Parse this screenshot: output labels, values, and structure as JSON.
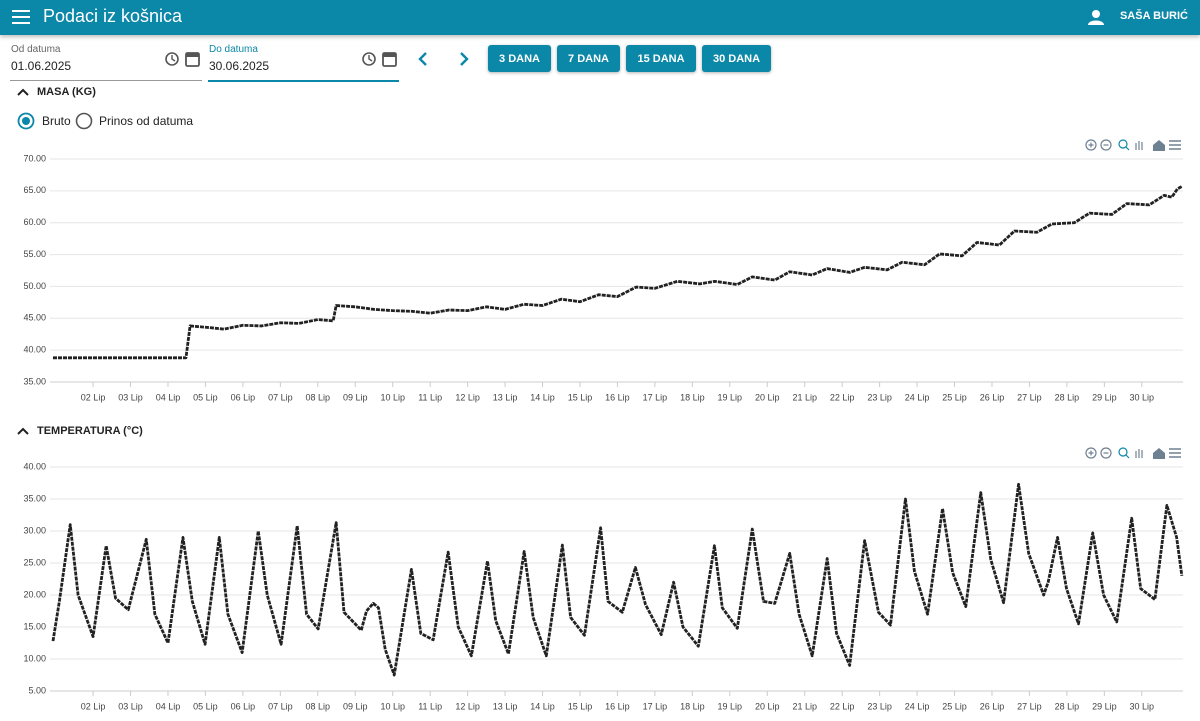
{
  "app_bar": {
    "title": "Podaci iz košnica",
    "user": "SAŠA BURIĆ"
  },
  "filters": {
    "from_label": "Od datuma",
    "from_value": "01.06.2025",
    "to_label": "Do datuma",
    "to_value": "30.06.2025",
    "range_buttons": [
      "3 DANA",
      "7 DANA",
      "15 DANA",
      "30 DANA"
    ]
  },
  "sections": [
    {
      "title": "MASA (KG)"
    },
    {
      "title": "TEMPERATURA (°C)"
    }
  ],
  "mass_options": [
    "Bruto",
    "Prinos od datuma"
  ],
  "chart_data": [
    {
      "type": "line",
      "color": "#222222",
      "grid": true,
      "x": [
        0.93,
        4.48,
        4.59,
        5.0,
        5.5,
        6.0,
        6.5,
        7.0,
        7.5,
        8.0,
        8.41,
        8.49,
        9.0,
        9.5,
        10.0,
        10.5,
        11.0,
        11.5,
        12.0,
        12.5,
        13.0,
        13.5,
        14.0,
        14.5,
        15.0,
        15.5,
        16.0,
        16.5,
        17.0,
        17.6,
        18.2,
        18.6,
        19.2,
        19.6,
        20.2,
        20.6,
        21.2,
        21.6,
        22.2,
        22.6,
        23.2,
        23.6,
        24.2,
        24.6,
        25.2,
        25.6,
        26.2,
        26.6,
        27.2,
        27.6,
        28.2,
        28.6,
        29.2,
        29.6,
        30.2,
        30.6,
        30.8,
        30.95,
        31.07
      ],
      "values": [
        38.8,
        38.8,
        43.8,
        43.6,
        43.3,
        43.9,
        43.8,
        44.3,
        44.2,
        44.8,
        44.6,
        47.0,
        46.8,
        46.4,
        46.2,
        46.1,
        45.8,
        46.3,
        46.2,
        46.8,
        46.4,
        47.2,
        47.0,
        48.0,
        47.6,
        48.7,
        48.4,
        49.9,
        49.7,
        50.8,
        50.4,
        50.8,
        50.3,
        51.5,
        51.0,
        52.3,
        51.8,
        52.8,
        52.2,
        53.0,
        52.6,
        53.8,
        53.4,
        55.1,
        54.8,
        56.9,
        56.5,
        58.7,
        58.5,
        59.8,
        60.0,
        61.5,
        61.3,
        63.0,
        62.8,
        64.3,
        64.0,
        65.3,
        65.7
      ],
      "xlim": [
        0.85,
        31.1
      ],
      "xticks": [
        {
          "value": 2,
          "label": "02 Lip"
        },
        {
          "value": 3,
          "label": "03 Lip"
        },
        {
          "value": 4,
          "label": "04 Lip"
        },
        {
          "value": 5,
          "label": "05 Lip"
        },
        {
          "value": 6,
          "label": "06 Lip"
        },
        {
          "value": 7,
          "label": "07 Lip"
        },
        {
          "value": 8,
          "label": "08 Lip"
        },
        {
          "value": 9,
          "label": "09 Lip"
        },
        {
          "value": 10,
          "label": "10 Lip"
        },
        {
          "value": 11,
          "label": "11 Lip"
        },
        {
          "value": 12,
          "label": "12 Lip"
        },
        {
          "value": 13,
          "label": "13 Lip"
        },
        {
          "value": 14,
          "label": "14 Lip"
        },
        {
          "value": 15,
          "label": "15 Lip"
        },
        {
          "value": 16,
          "label": "16 Lip"
        },
        {
          "value": 17,
          "label": "17 Lip"
        },
        {
          "value": 18,
          "label": "18 Lip"
        },
        {
          "value": 19,
          "label": "19 Lip"
        },
        {
          "value": 20,
          "label": "20 Lip"
        },
        {
          "value": 21,
          "label": "21 Lip"
        },
        {
          "value": 22,
          "label": "22 Lip"
        },
        {
          "value": 23,
          "label": "23 Lip"
        },
        {
          "value": 24,
          "label": "24 Lip"
        },
        {
          "value": 25,
          "label": "25 Lip"
        },
        {
          "value": 26,
          "label": "26 Lip"
        },
        {
          "value": 27,
          "label": "27 Lip"
        },
        {
          "value": 28,
          "label": "28 Lip"
        },
        {
          "value": 29,
          "label": "29 Lip"
        },
        {
          "value": 30,
          "label": "30 Lip"
        }
      ],
      "ylim": [
        35,
        70
      ],
      "yticks": [
        {
          "value": 35,
          "label": "35.00"
        },
        {
          "value": 40,
          "label": "40.00"
        },
        {
          "value": 45,
          "label": "45.00"
        },
        {
          "value": 50,
          "label": "50.00"
        },
        {
          "value": 55,
          "label": "55.00"
        },
        {
          "value": 60,
          "label": "60.00"
        },
        {
          "value": 65,
          "label": "65.00"
        },
        {
          "value": 70,
          "label": "70.00"
        }
      ]
    },
    {
      "type": "line",
      "color": "#222222",
      "grid": true,
      "x": [
        0.93,
        1.1,
        1.39,
        1.6,
        2.0,
        2.35,
        2.6,
        2.94,
        3.42,
        3.65,
        4.0,
        4.4,
        4.65,
        4.99,
        5.37,
        5.6,
        5.98,
        6.41,
        6.65,
        7.02,
        7.45,
        7.7,
        8.01,
        8.49,
        8.7,
        9.16,
        9.3,
        9.48,
        9.62,
        9.8,
        10.04,
        10.5,
        10.75,
        11.08,
        11.48,
        11.75,
        12.1,
        12.53,
        12.75,
        13.09,
        13.51,
        13.75,
        14.1,
        14.53,
        14.75,
        15.12,
        15.55,
        15.75,
        16.13,
        16.48,
        16.75,
        17.17,
        17.5,
        17.75,
        18.16,
        18.59,
        18.8,
        19.2,
        19.6,
        19.9,
        20.2,
        20.6,
        20.85,
        21.2,
        21.6,
        21.85,
        22.2,
        22.6,
        22.97,
        23.29,
        23.69,
        23.93,
        24.28,
        24.68,
        24.95,
        25.3,
        25.7,
        25.97,
        26.31,
        26.71,
        26.98,
        27.38,
        27.5,
        27.75,
        27.99,
        28.31,
        28.69,
        28.98,
        29.33,
        29.73,
        29.97,
        30.35,
        30.67,
        30.93,
        31.07
      ],
      "values": [
        12.8,
        19,
        31,
        20,
        13.5,
        27.7,
        19.5,
        17.7,
        28.7,
        17,
        12.5,
        29,
        19,
        12.3,
        29,
        17,
        11,
        30,
        20,
        12.3,
        30.8,
        17,
        14.7,
        31.3,
        17.3,
        14.5,
        17.5,
        18.7,
        18,
        11.5,
        7.5,
        24,
        14,
        13,
        26.7,
        15,
        10.5,
        25.3,
        16,
        10.8,
        26.8,
        16.5,
        10.5,
        27.8,
        16.5,
        13.7,
        30.5,
        19,
        17.3,
        24.3,
        18.5,
        13.8,
        22,
        15,
        12,
        27.7,
        18,
        14.8,
        30.3,
        19,
        18.7,
        26.5,
        17,
        10.5,
        25.7,
        14,
        9,
        28.5,
        17.3,
        15.3,
        35,
        23.7,
        17,
        33.5,
        23.5,
        18.2,
        36,
        25.5,
        18.8,
        37.3,
        26.5,
        20,
        22,
        29,
        21,
        15.5,
        29.7,
        20,
        15.8,
        32,
        21,
        19.3,
        34,
        29,
        23
      ],
      "xlim": [
        0.85,
        31.1
      ],
      "xticks": [
        {
          "value": 2,
          "label": "02 Lip"
        },
        {
          "value": 3,
          "label": "03 Lip"
        },
        {
          "value": 4,
          "label": "04 Lip"
        },
        {
          "value": 5,
          "label": "05 Lip"
        },
        {
          "value": 6,
          "label": "06 Lip"
        },
        {
          "value": 7,
          "label": "07 Lip"
        },
        {
          "value": 8,
          "label": "08 Lip"
        },
        {
          "value": 9,
          "label": "09 Lip"
        },
        {
          "value": 10,
          "label": "10 Lip"
        },
        {
          "value": 11,
          "label": "11 Lip"
        },
        {
          "value": 12,
          "label": "12 Lip"
        },
        {
          "value": 13,
          "label": "13 Lip"
        },
        {
          "value": 14,
          "label": "14 Lip"
        },
        {
          "value": 15,
          "label": "15 Lip"
        },
        {
          "value": 16,
          "label": "16 Lip"
        },
        {
          "value": 17,
          "label": "17 Lip"
        },
        {
          "value": 18,
          "label": "18 Lip"
        },
        {
          "value": 19,
          "label": "19 Lip"
        },
        {
          "value": 20,
          "label": "20 Lip"
        },
        {
          "value": 21,
          "label": "21 Lip"
        },
        {
          "value": 22,
          "label": "22 Lip"
        },
        {
          "value": 23,
          "label": "23 Lip"
        },
        {
          "value": 24,
          "label": "24 Lip"
        },
        {
          "value": 25,
          "label": "25 Lip"
        },
        {
          "value": 26,
          "label": "26 Lip"
        },
        {
          "value": 27,
          "label": "27 Lip"
        },
        {
          "value": 28,
          "label": "28 Lip"
        },
        {
          "value": 29,
          "label": "29 Lip"
        },
        {
          "value": 30,
          "label": "30 Lip"
        }
      ],
      "ylim": [
        5,
        40
      ],
      "yticks": [
        {
          "value": 5,
          "label": "5.00"
        },
        {
          "value": 10,
          "label": "10.00"
        },
        {
          "value": 15,
          "label": "15.00"
        },
        {
          "value": 20,
          "label": "20.00"
        },
        {
          "value": 25,
          "label": "25.00"
        },
        {
          "value": 30,
          "label": "30.00"
        },
        {
          "value": 35,
          "label": "35.00"
        },
        {
          "value": 40,
          "label": "40.00"
        }
      ]
    }
  ]
}
